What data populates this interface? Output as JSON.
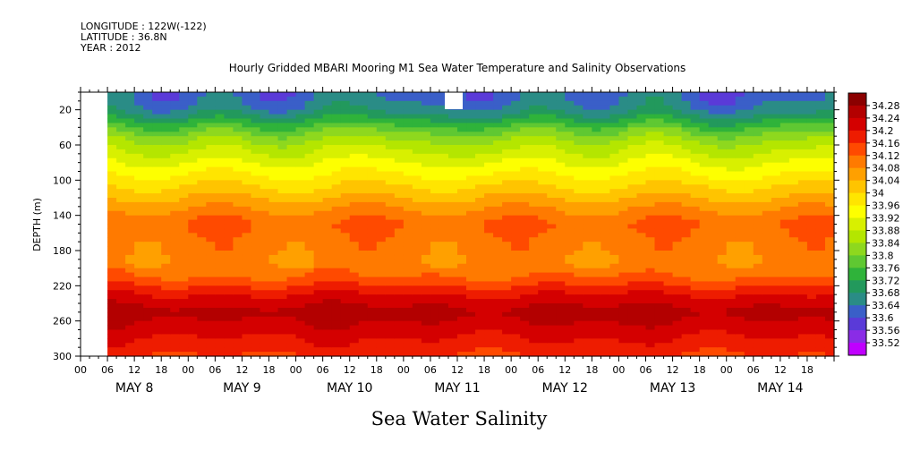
{
  "header": {
    "longitude": "LONGITUDE : 122W(-122)",
    "latitude": "LATITUDE : 36.8N",
    "year": "YEAR : 2012"
  },
  "chart_data": {
    "type": "heatmap",
    "title": "Hourly Gridded MBARI Mooring M1 Sea Water Temperature and Salinity Observations",
    "xlabel": "Sea Water Salinity",
    "ylabel": "DEPTH (m)",
    "ylim": [
      300,
      0
    ],
    "y_ticks": [
      20,
      60,
      100,
      140,
      180,
      220,
      260,
      300
    ],
    "x_hour_ticks": [
      "00",
      "06",
      "12",
      "18",
      "00",
      "06",
      "12",
      "18",
      "00",
      "06",
      "12",
      "18",
      "00",
      "06",
      "12",
      "18",
      "00",
      "06",
      "12",
      "18",
      "00",
      "06",
      "12",
      "18",
      "00",
      "06",
      "12",
      "18"
    ],
    "x_days": [
      "MAY  8",
      "MAY  9",
      "MAY 10",
      "MAY 11",
      "MAY 12",
      "MAY 13",
      "MAY 14"
    ],
    "data_start": "06",
    "colorbar": {
      "levels": [
        34.28,
        34.24,
        34.2,
        34.16,
        34.12,
        34.08,
        34.04,
        34,
        33.96,
        33.92,
        33.88,
        33.84,
        33.8,
        33.76,
        33.72,
        33.68,
        33.64,
        33.6,
        33.56,
        33.52
      ],
      "colors": [
        "#8b0000",
        "#b30000",
        "#d40000",
        "#ee1c00",
        "#ff4a00",
        "#ff7a00",
        "#ffa000",
        "#ffc400",
        "#ffe500",
        "#fdff00",
        "#d8f000",
        "#b4e600",
        "#8ed81e",
        "#5fc832",
        "#2fb33a",
        "#22995c",
        "#2a8c86",
        "#3a5fc8",
        "#5a3ad8",
        "#8a2ce6",
        "#c000ff"
      ]
    },
    "depth_profile": {
      "depths": [
        5,
        12,
        20,
        30,
        40,
        50,
        60,
        70,
        80,
        90,
        100,
        110,
        120,
        130,
        140,
        150,
        160,
        170,
        180,
        190,
        200,
        210,
        220,
        230,
        240,
        250,
        260,
        270,
        280,
        290,
        300
      ],
      "salinity": [
        33.63,
        33.64,
        33.66,
        33.71,
        33.77,
        33.82,
        33.86,
        33.89,
        33.92,
        33.95,
        33.98,
        34.01,
        34.04,
        34.07,
        34.1,
        34.12,
        34.11,
        34.1,
        34.1,
        34.09,
        34.1,
        34.12,
        34.16,
        34.2,
        34.23,
        34.26,
        34.24,
        34.22,
        34.2,
        34.18,
        34.16
      ]
    }
  }
}
